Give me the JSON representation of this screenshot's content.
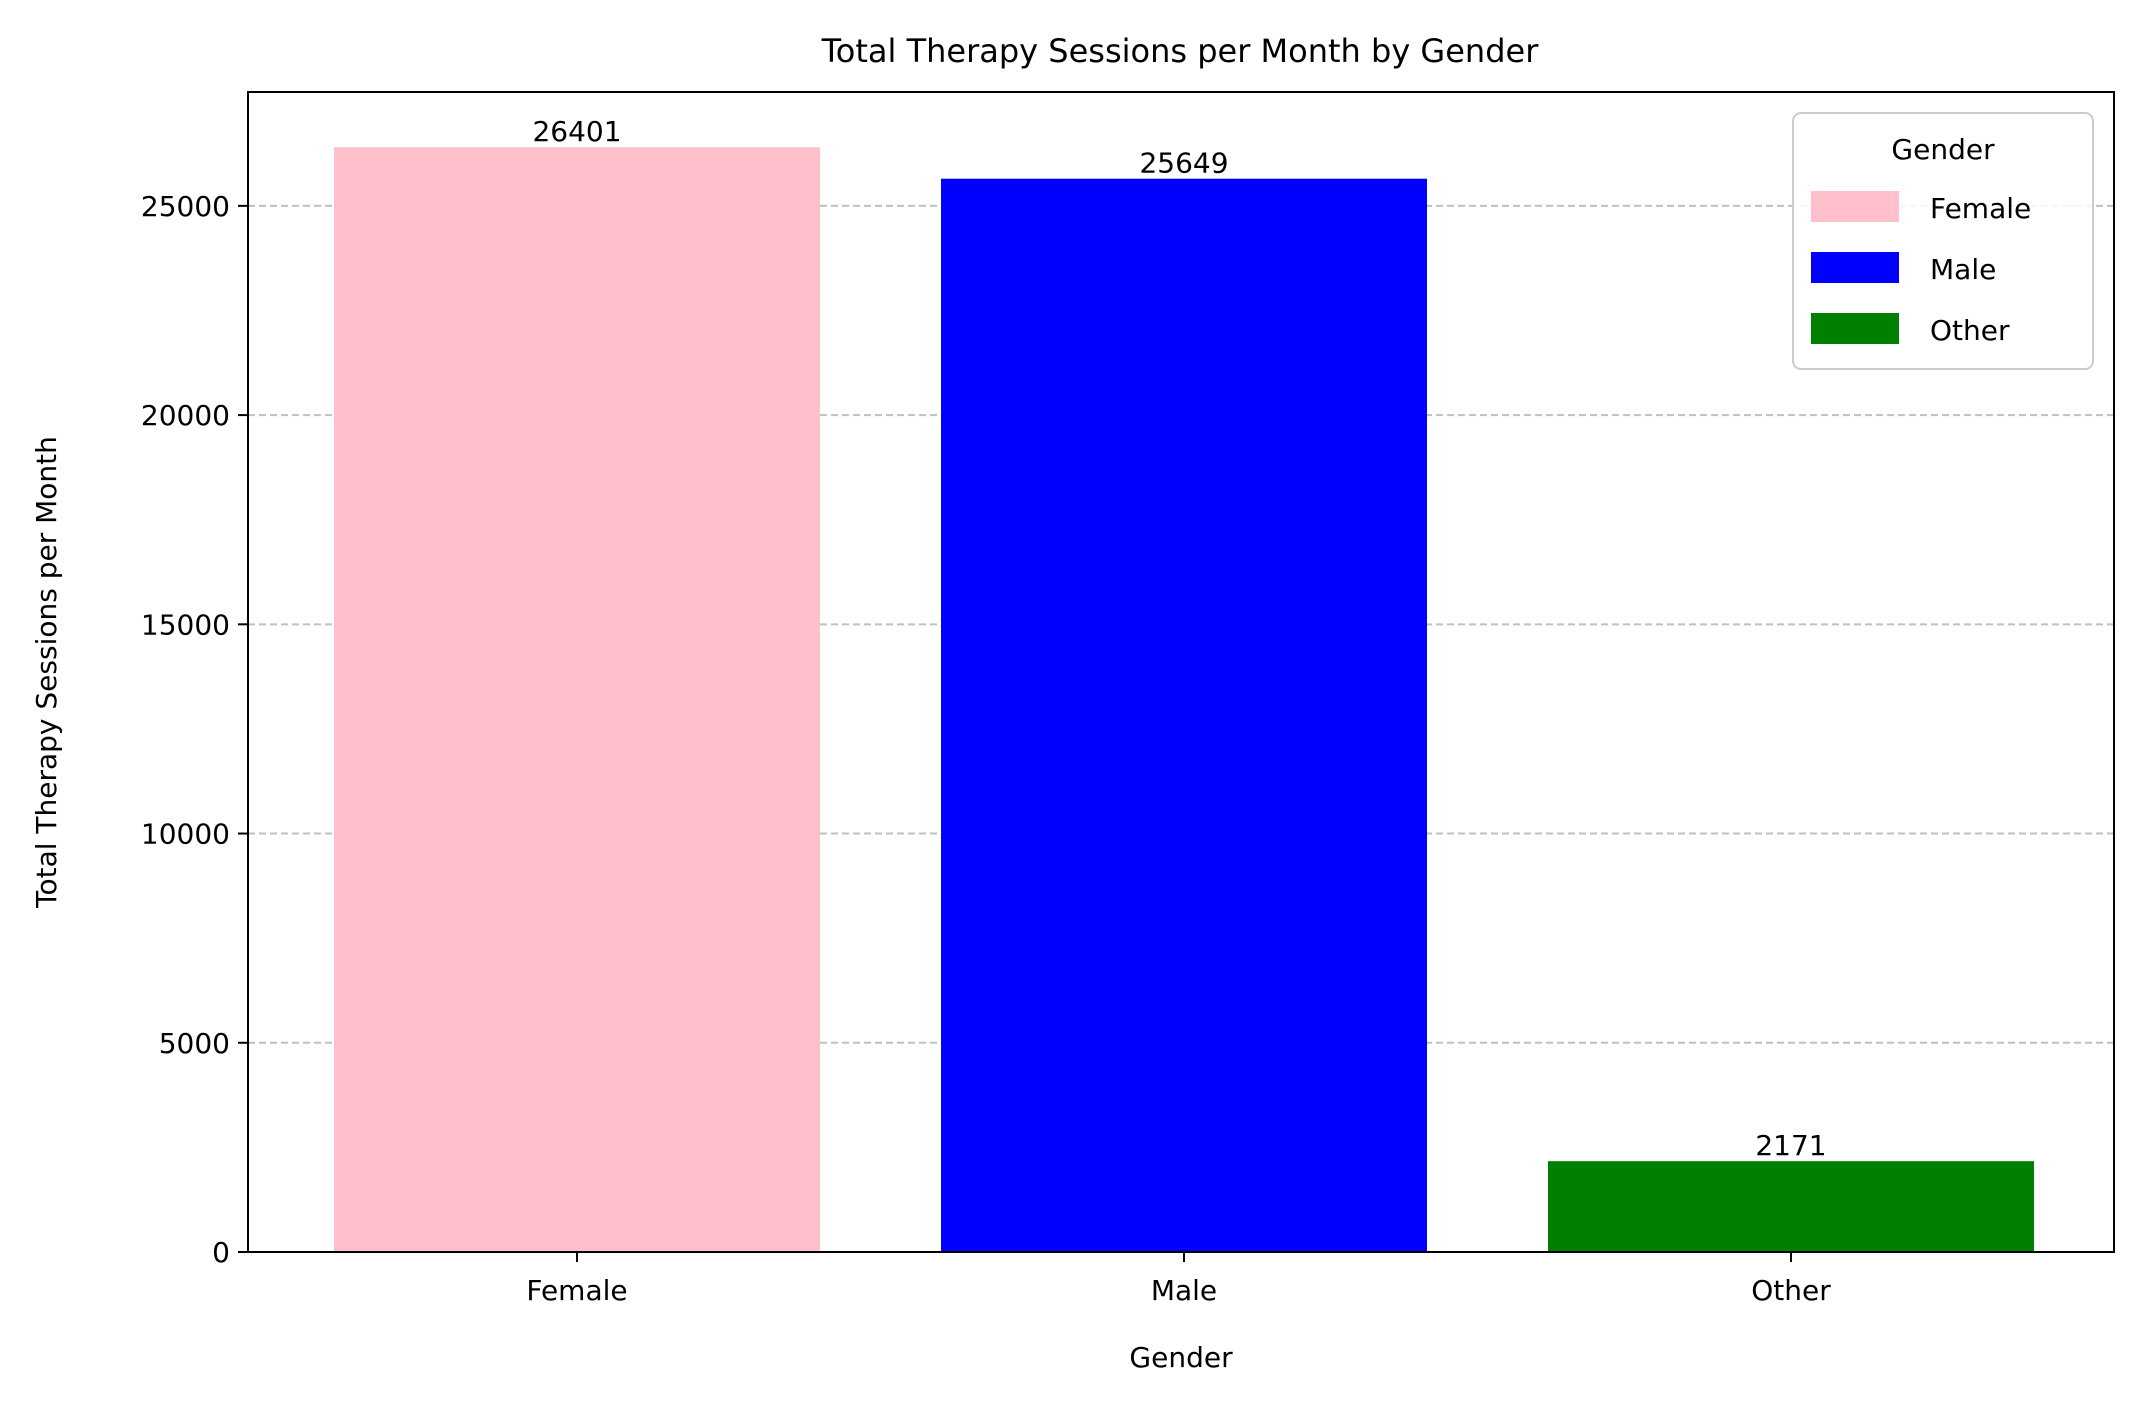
{
  "chart_data": {
    "type": "bar",
    "title": "Total Therapy Sessions per Month by Gender",
    "xlabel": "Gender",
    "ylabel": "Total Therapy Sessions per Month",
    "categories": [
      "Female",
      "Male",
      "Other"
    ],
    "values": [
      26401,
      25649,
      2171
    ],
    "value_labels": [
      "26401",
      "25649",
      "2171"
    ],
    "colors": [
      "#ffc0cb",
      "#0000ff",
      "#008000"
    ],
    "ylim": [
      0,
      27721
    ],
    "yticks": [
      0,
      5000,
      10000,
      15000,
      20000,
      25000
    ],
    "ytick_labels": [
      "0",
      "5000",
      "10000",
      "15000",
      "20000",
      "25000"
    ],
    "grid": {
      "axis": "y",
      "style": "dashed",
      "color": "#c0c0c0"
    },
    "legend": {
      "title": "Gender",
      "placement": "top-right",
      "entries": [
        "Female",
        "Male",
        "Other"
      ]
    }
  }
}
